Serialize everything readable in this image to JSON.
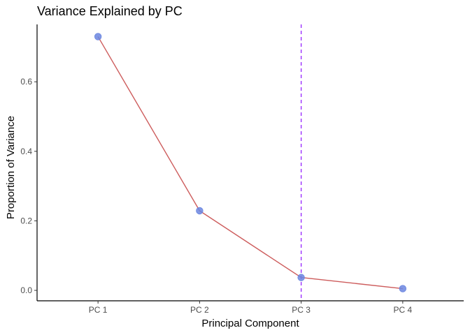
{
  "chart_data": {
    "type": "line",
    "title": "Variance Explained by PC",
    "xlabel": "Principal Component",
    "ylabel": "Proportion of Variance",
    "categories": [
      "PC 1",
      "PC 2",
      "PC 3",
      "PC 4"
    ],
    "series": [
      {
        "values": [
          0.73,
          0.229,
          0.037,
          0.005
        ],
        "line_color": "#cd5c5c",
        "point_color": "#6b86e0"
      }
    ],
    "ylim": [
      -0.03,
      0.765
    ],
    "yticks": [
      0.0,
      0.2,
      0.4,
      0.6
    ],
    "ytick_labels": [
      "0.0",
      "0.2",
      "0.4",
      "0.6"
    ],
    "reference_line": {
      "category": "PC 3",
      "color": "#9b30ff",
      "style": "dashed"
    },
    "grid": false,
    "legend": "none"
  }
}
